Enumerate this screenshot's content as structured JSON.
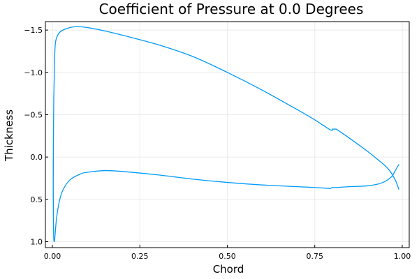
{
  "chart_data": {
    "type": "line",
    "title": "Coefficient of Pressure at 0.0 Degrees",
    "xlabel": "Chord",
    "ylabel": "Thickness",
    "xlim": [
      -0.02,
      1.02
    ],
    "ylim": [
      1.07,
      -1.6
    ],
    "y_axis_inverted": true,
    "grid": true,
    "legend": "none",
    "x_ticks": [
      {
        "value": 0.0,
        "label": "0.00"
      },
      {
        "value": 0.25,
        "label": "0.25"
      },
      {
        "value": 0.5,
        "label": "0.50"
      },
      {
        "value": 0.75,
        "label": "0.75"
      },
      {
        "value": 1.0,
        "label": "1.00"
      }
    ],
    "y_ticks": [
      {
        "value": -1.5,
        "label": "−1.5"
      },
      {
        "value": -1.0,
        "label": "−1.0"
      },
      {
        "value": -0.5,
        "label": "−0.5"
      },
      {
        "value": 0.0,
        "label": "0.0"
      },
      {
        "value": 0.5,
        "label": "0.5"
      },
      {
        "value": 1.0,
        "label": "1.0"
      }
    ],
    "series": [
      {
        "color": "#009af9",
        "x": [
          0.99,
          0.98,
          0.96,
          0.93,
          0.9,
          0.85,
          0.815,
          0.81,
          0.805,
          0.8,
          0.795,
          0.75,
          0.7,
          0.6,
          0.5,
          0.4,
          0.3,
          0.2,
          0.15,
          0.1,
          0.07,
          0.05,
          0.03,
          0.02,
          0.012,
          0.008,
          0.006,
          0.004,
          0.003,
          0.0025,
          0.003,
          0.004,
          0.006,
          0.008,
          0.012,
          0.02,
          0.03,
          0.05,
          0.08,
          0.1,
          0.15,
          0.2,
          0.3,
          0.4,
          0.5,
          0.6,
          0.7,
          0.75,
          0.79,
          0.795,
          0.8,
          0.805,
          0.81,
          0.85,
          0.9,
          0.93,
          0.95,
          0.97,
          0.98,
          0.99
        ],
        "y": [
          0.38,
          0.27,
          0.14,
          0.03,
          -0.07,
          -0.22,
          -0.32,
          -0.33,
          -0.33,
          -0.33,
          -0.32,
          -0.44,
          -0.56,
          -0.79,
          -1.0,
          -1.19,
          -1.33,
          -1.44,
          -1.49,
          -1.53,
          -1.54,
          -1.53,
          -1.5,
          -1.47,
          -1.41,
          -1.32,
          -1.1,
          -0.7,
          -0.2,
          0.3,
          0.75,
          0.97,
          0.99,
          0.9,
          0.72,
          0.52,
          0.39,
          0.27,
          0.2,
          0.18,
          0.16,
          0.17,
          0.21,
          0.26,
          0.3,
          0.33,
          0.35,
          0.36,
          0.37,
          0.37,
          0.36,
          0.36,
          0.36,
          0.35,
          0.34,
          0.32,
          0.29,
          0.23,
          0.16,
          0.09
        ]
      }
    ]
  }
}
